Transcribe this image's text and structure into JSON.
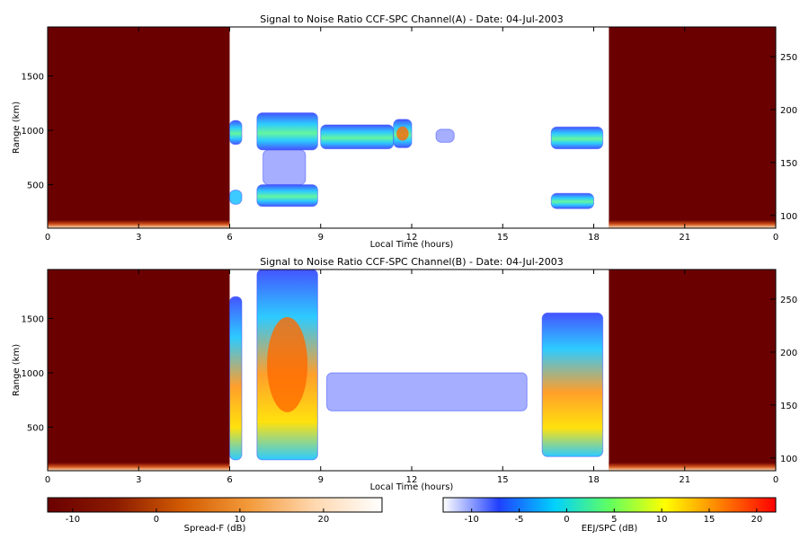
{
  "chart_data": [
    {
      "type": "heatmap",
      "title": "Signal to Noise Ratio CCF-SPC Channel(A) - Date: 04-Jul-2003",
      "xlabel": "Local Time (hours)",
      "ylabel": "Range (km)",
      "x_ticks": [
        "0",
        "3",
        "6",
        "9",
        "12",
        "15",
        "18",
        "21",
        "0"
      ],
      "y_ticks": [
        "500",
        "1000",
        "1500"
      ],
      "y_right_ticks": [
        "100",
        "150",
        "200",
        "250"
      ],
      "xlim": [
        0,
        24
      ],
      "ylim": [
        100,
        1950
      ],
      "y_right_lim": [
        88,
        278
      ],
      "night_regions_hours": [
        [
          0,
          6
        ],
        [
          18.5,
          24
        ]
      ],
      "echo_regions": [
        {
          "t0": 6.0,
          "t1": 6.4,
          "r0": 870,
          "r1": 1090,
          "level": "high"
        },
        {
          "t0": 6.0,
          "t1": 6.4,
          "r0": 320,
          "r1": 450,
          "level": "mid"
        },
        {
          "t0": 6.9,
          "t1": 8.9,
          "r0": 820,
          "r1": 1160,
          "level": "high"
        },
        {
          "t0": 6.9,
          "t1": 8.9,
          "r0": 300,
          "r1": 500,
          "level": "high"
        },
        {
          "t0": 7.1,
          "t1": 8.5,
          "r0": 500,
          "r1": 820,
          "level": "low"
        },
        {
          "t0": 9.0,
          "t1": 11.4,
          "r0": 830,
          "r1": 1050,
          "level": "high"
        },
        {
          "t0": 11.4,
          "t1": 12.0,
          "r0": 840,
          "r1": 1100,
          "level": "max"
        },
        {
          "t0": 12.8,
          "t1": 13.4,
          "r0": 890,
          "r1": 1010,
          "level": "low"
        },
        {
          "t0": 16.6,
          "t1": 18.3,
          "r0": 830,
          "r1": 1030,
          "level": "high"
        },
        {
          "t0": 16.6,
          "t1": 18.0,
          "r0": 280,
          "r1": 420,
          "level": "high"
        }
      ]
    },
    {
      "type": "heatmap",
      "title": "Signal to Noise Ratio CCF-SPC Channel(B) - Date: 04-Jul-2003",
      "xlabel": "Local Time (hours)",
      "ylabel": "Range (km)",
      "x_ticks": [
        "0",
        "3",
        "6",
        "9",
        "12",
        "15",
        "18",
        "21",
        "0"
      ],
      "y_ticks": [
        "500",
        "1000",
        "1500"
      ],
      "y_right_ticks": [
        "100",
        "150",
        "200",
        "250"
      ],
      "xlim": [
        0,
        24
      ],
      "ylim": [
        100,
        1950
      ],
      "y_right_lim": [
        88,
        278
      ],
      "night_regions_hours": [
        [
          0,
          6
        ],
        [
          18.5,
          24
        ]
      ],
      "echo_regions": [
        {
          "t0": 6.0,
          "t1": 6.4,
          "r0": 200,
          "r1": 1700,
          "level": "high"
        },
        {
          "t0": 6.9,
          "t1": 8.9,
          "r0": 200,
          "r1": 1950,
          "level": "max"
        },
        {
          "t0": 9.2,
          "t1": 15.8,
          "r0": 650,
          "r1": 1000,
          "level": "low"
        },
        {
          "t0": 16.3,
          "t1": 18.3,
          "r0": 230,
          "r1": 1550,
          "level": "high"
        }
      ]
    }
  ],
  "colorbars": [
    {
      "label": "Spread-F (dB)",
      "ticks": [
        "-10",
        "0",
        "10",
        "20"
      ],
      "range": [
        -13,
        27
      ],
      "colors": [
        "#6b0000",
        "#8a1a00",
        "#d25a00",
        "#f39a3a",
        "#ffd8b0",
        "#ffffff"
      ]
    },
    {
      "label": "EEJ/SPC (dB)",
      "ticks": [
        "-10",
        "-5",
        "0",
        "5",
        "10",
        "15",
        "20"
      ],
      "range": [
        -13,
        22
      ],
      "colors": [
        "#ffffff",
        "#2040ff",
        "#00d0ff",
        "#60ff60",
        "#ffff00",
        "#ff8000",
        "#ff0000"
      ]
    }
  ],
  "colors": {
    "night": "#6b0000",
    "low": "#5b6bff",
    "mid": "#33c8ff",
    "high": "#4cf0a0",
    "max": "#ff6a00"
  }
}
